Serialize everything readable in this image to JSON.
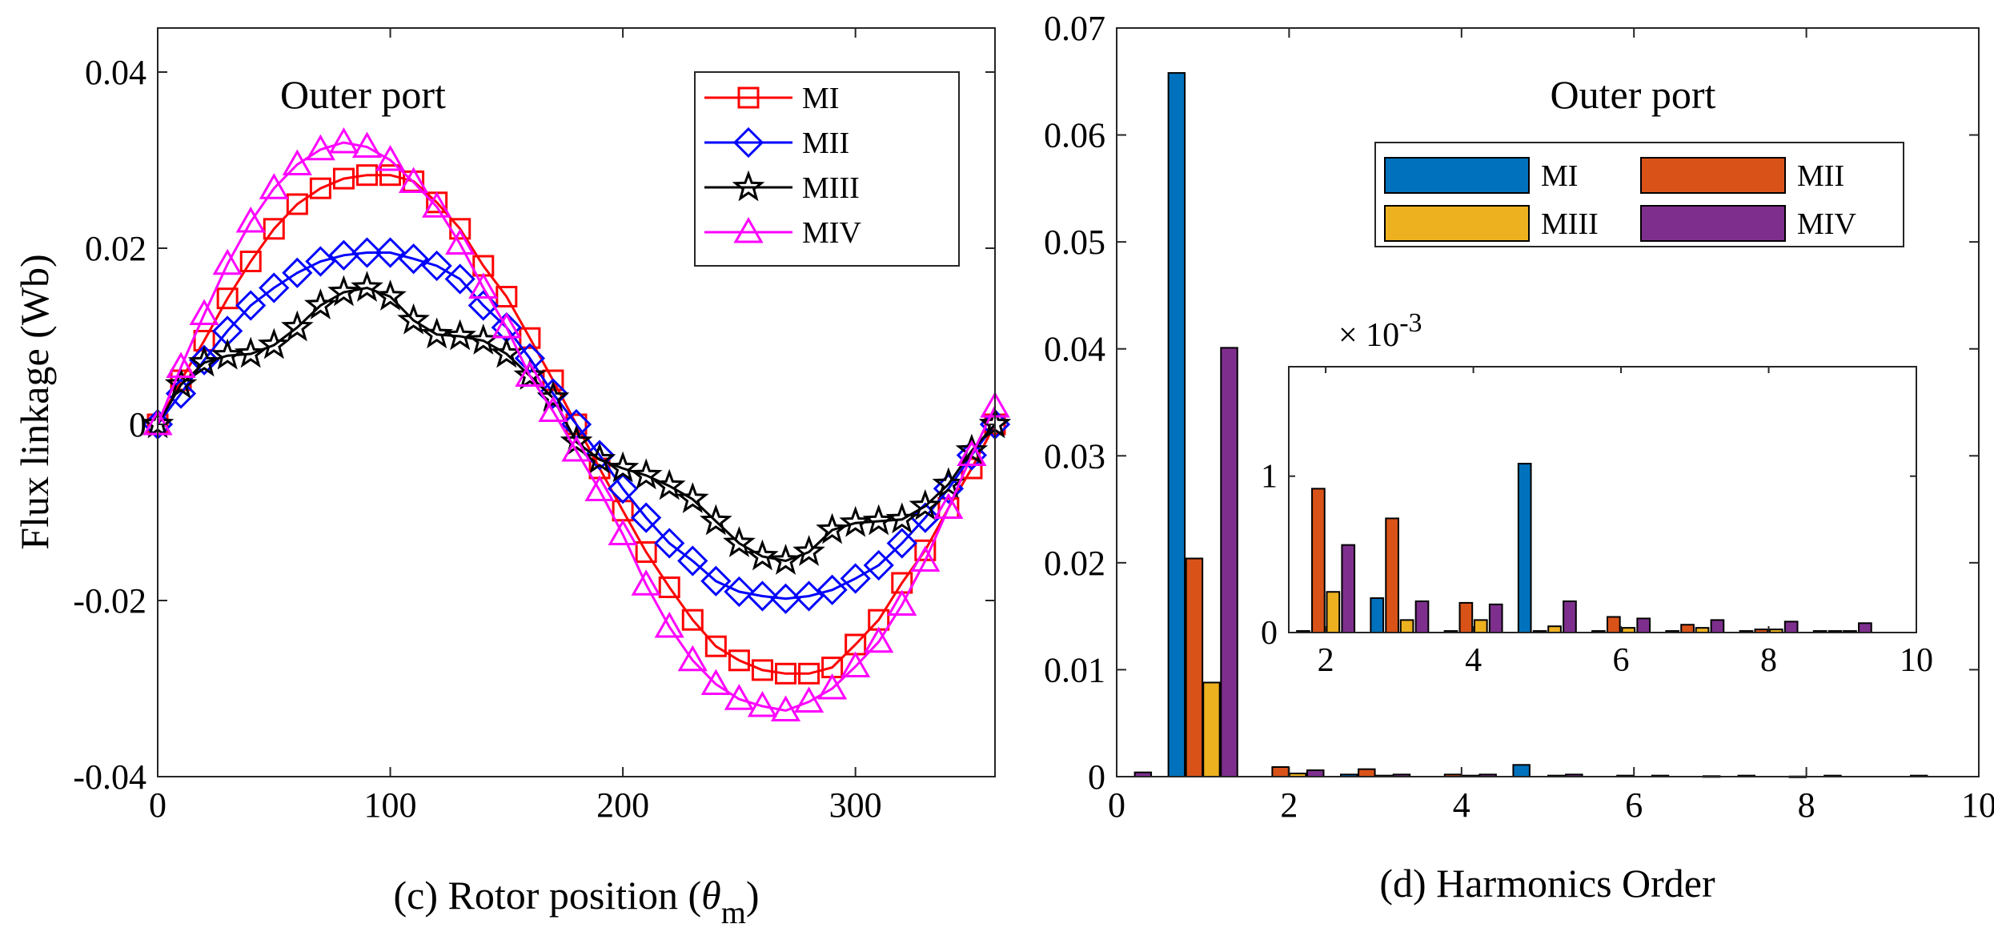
{
  "chart_data": [
    {
      "id": "c",
      "type": "line",
      "title": "Outer port",
      "xlabel_prefix": "(c) Rotor position (",
      "xlabel_symbol": "θ",
      "xlabel_sub": "m",
      "xlabel_suffix": ")",
      "ylabel": "Flux linkage (Wb)",
      "xlim": [
        0,
        360
      ],
      "ylim": [
        -0.04,
        0.045
      ],
      "xticks": [
        0,
        100,
        200,
        300
      ],
      "xtick_labels": [
        "0",
        "100",
        "200",
        "300"
      ],
      "yticks": [
        -0.04,
        -0.02,
        0,
        0.02,
        0.04
      ],
      "ytick_labels": [
        "-0.04",
        "-0.02",
        "0",
        "0.02",
        "0.04"
      ],
      "x": [
        0,
        10,
        20,
        30,
        40,
        50,
        60,
        70,
        80,
        90,
        100,
        110,
        120,
        130,
        140,
        150,
        160,
        170,
        180,
        190,
        200,
        210,
        220,
        230,
        240,
        250,
        260,
        270,
        280,
        290,
        300,
        310,
        320,
        330,
        340,
        350,
        360
      ],
      "series": [
        {
          "name": "MI",
          "color": "#ff0000",
          "marker": "square",
          "values": [
            0,
            0.005,
            0.0095,
            0.0143,
            0.0185,
            0.0222,
            0.025,
            0.0268,
            0.0279,
            0.0283,
            0.0283,
            0.0276,
            0.0252,
            0.0222,
            0.018,
            0.0145,
            0.0098,
            0.005,
            0,
            -0.005,
            -0.0098,
            -0.0145,
            -0.0185,
            -0.0222,
            -0.0252,
            -0.0268,
            -0.0279,
            -0.0283,
            -0.0283,
            -0.0276,
            -0.025,
            -0.0222,
            -0.018,
            -0.0143,
            -0.0095,
            -0.005,
            0
          ]
        },
        {
          "name": "MII",
          "color": "#0000ff",
          "marker": "diamond",
          "values": [
            0,
            0.0035,
            0.0073,
            0.0106,
            0.0135,
            0.0155,
            0.0172,
            0.0185,
            0.0192,
            0.0195,
            0.0195,
            0.0188,
            0.018,
            0.0165,
            0.0135,
            0.011,
            0.0075,
            0.0035,
            0,
            -0.0035,
            -0.0073,
            -0.0106,
            -0.0135,
            -0.0155,
            -0.0178,
            -0.019,
            -0.0195,
            -0.0198,
            -0.0195,
            -0.0188,
            -0.0175,
            -0.016,
            -0.0135,
            -0.0106,
            -0.0073,
            -0.0035,
            0
          ]
        },
        {
          "name": "MIII",
          "color": "#000000",
          "marker": "star",
          "values": [
            0,
            0.0045,
            0.007,
            0.0078,
            0.008,
            0.009,
            0.011,
            0.0135,
            0.015,
            0.0155,
            0.0145,
            0.0118,
            0.0102,
            0.01,
            0.0095,
            0.008,
            0.0055,
            0.003,
            -0.002,
            -0.004,
            -0.005,
            -0.0058,
            -0.007,
            -0.0085,
            -0.011,
            -0.0135,
            -0.015,
            -0.0155,
            -0.0145,
            -0.012,
            -0.0112,
            -0.011,
            -0.0108,
            -0.0093,
            -0.0068,
            -0.003,
            0
          ]
        },
        {
          "name": "MIV",
          "color": "#ff00ff",
          "marker": "triangle",
          "values": [
            0,
            0.0065,
            0.0125,
            0.0182,
            0.023,
            0.0268,
            0.0295,
            0.0312,
            0.032,
            0.0315,
            0.03,
            0.0275,
            0.0247,
            0.0205,
            0.0155,
            0.011,
            0.0055,
            0.0015,
            -0.003,
            -0.0075,
            -0.0125,
            -0.0182,
            -0.023,
            -0.0268,
            -0.0295,
            -0.0312,
            -0.032,
            -0.0325,
            -0.0315,
            -0.03,
            -0.0275,
            -0.0247,
            -0.0205,
            -0.0155,
            -0.0095,
            -0.0035,
            0.002
          ]
        }
      ],
      "legend_position": "top-right"
    },
    {
      "id": "d",
      "type": "bar",
      "title": "Outer port",
      "xlabel": "(d) Harmonics Order",
      "ylabel": "",
      "xlim": [
        0,
        10
      ],
      "ylim": [
        0,
        0.07
      ],
      "xticks": [
        0,
        2,
        4,
        6,
        8,
        10
      ],
      "xtick_labels": [
        "0",
        "2",
        "4",
        "6",
        "8",
        "10"
      ],
      "yticks": [
        0,
        0.01,
        0.02,
        0.03,
        0.04,
        0.05,
        0.06,
        0.07
      ],
      "ytick_labels": [
        "0",
        "0.01",
        "0.02",
        "0.03",
        "0.04",
        "0.05",
        "0.06",
        "0.07"
      ],
      "categories": [
        0,
        1,
        2,
        3,
        4,
        5,
        6,
        7,
        8,
        9
      ],
      "series": [
        {
          "name": "MI",
          "color": "#0072bd",
          "values": [
            0,
            0.0658,
            0,
            0.0002,
            0,
            0.0011,
            0,
            0,
            0,
            0
          ]
        },
        {
          "name": "MII",
          "color": "#d95319",
          "values": [
            0,
            0.0204,
            0.0009,
            0.0007,
            0.0002,
            0,
            0.0001,
            5e-05,
            2e-05,
            0
          ]
        },
        {
          "name": "MIII",
          "color": "#edb120",
          "values": [
            0,
            0.0088,
            0.0003,
            0.0001,
            0.0001,
            0.0001,
            0,
            0,
            0,
            0
          ]
        },
        {
          "name": "MIV",
          "color": "#7e2f8e",
          "values": [
            0.0004,
            0.0401,
            0.0006,
            0.0002,
            0.0002,
            0.0002,
            0.0001,
            0.0001,
            0.0001,
            0.0001
          ]
        }
      ],
      "legend_position": "top-right",
      "inset": {
        "exponent_prefix": "× 10",
        "exponent_power": "-3",
        "xlim": [
          1.5,
          10
        ],
        "ylim": [
          0,
          1.7
        ],
        "xticks": [
          2,
          4,
          6,
          8,
          10
        ],
        "xtick_labels": [
          "2",
          "4",
          "6",
          "8",
          "10"
        ],
        "yticks": [
          0,
          1
        ],
        "ytick_labels": [
          "0",
          "1"
        ],
        "categories": [
          2,
          3,
          4,
          5,
          6,
          7,
          8,
          9
        ],
        "series": [
          {
            "name": "MI",
            "values": [
              0.01,
              0.22,
              0.01,
              1.08,
              0.01,
              0.01,
              0.01,
              0.01
            ]
          },
          {
            "name": "MII",
            "values": [
              0.92,
              0.73,
              0.19,
              0.01,
              0.1,
              0.05,
              0.02,
              0.01
            ]
          },
          {
            "name": "MIII",
            "values": [
              0.26,
              0.08,
              0.08,
              0.04,
              0.03,
              0.03,
              0.02,
              0.01
            ]
          },
          {
            "name": "MIV",
            "values": [
              0.56,
              0.2,
              0.18,
              0.2,
              0.09,
              0.08,
              0.07,
              0.06
            ]
          }
        ]
      }
    }
  ]
}
